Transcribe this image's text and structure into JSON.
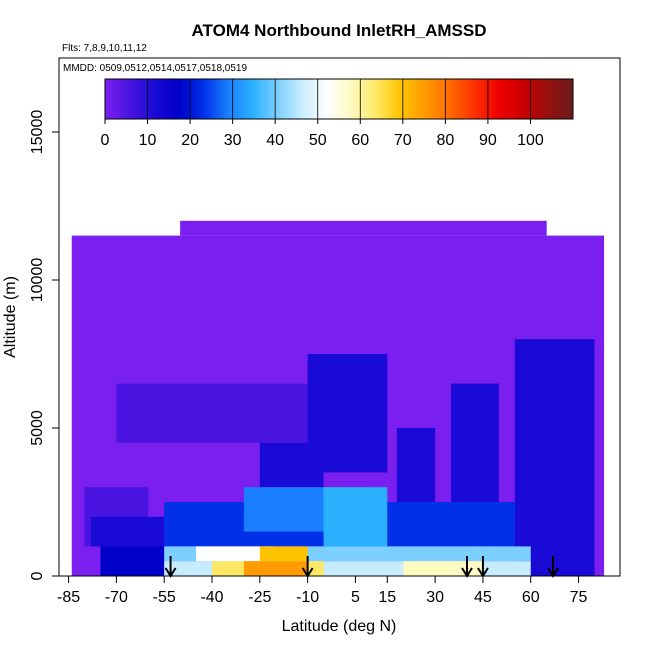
{
  "chart_data": {
    "type": "heatmap",
    "title": "ATOM4 Northbound InletRH_AMSSD",
    "flights_label": "Flts: 7,8,9,10,11,12",
    "mmdd_label": "MMDD: 0509,0512,0514,0517,0518,0519",
    "xlabel": "Latitude (deg N)",
    "ylabel": "Altitude (m)",
    "xlim": [
      -88,
      88
    ],
    "ylim": [
      0,
      17500
    ],
    "x_ticks": [
      -85,
      -70,
      -55,
      -40,
      -25,
      -10,
      5,
      15,
      30,
      45,
      60,
      75
    ],
    "y_ticks": [
      0,
      5000,
      10000,
      15000
    ],
    "colorbar": {
      "range": [
        0,
        110
      ],
      "ticks": [
        0,
        10,
        20,
        30,
        40,
        50,
        60,
        70,
        80,
        90,
        100
      ],
      "colors": [
        "#7a1ff0",
        "#4a14e0",
        "#1a0ad6",
        "#0000c8",
        "#0030e8",
        "#1a7fff",
        "#2ab0ff",
        "#7cd0ff",
        "#c8ecff",
        "#ffffff",
        "#fffac0",
        "#ffe866",
        "#ffc400",
        "#ff9a00",
        "#ff6a00",
        "#ff3000",
        "#ee0000",
        "#c80000",
        "#961010",
        "#6a1a1a"
      ]
    },
    "profile_arrows_lat": [
      -53,
      -10,
      40,
      45,
      67
    ],
    "cells": [
      {
        "lat_range": [
          -84,
          83
        ],
        "alt_range": [
          0,
          11500
        ],
        "value": 2
      },
      {
        "lat_range": [
          -50,
          65
        ],
        "alt_range": [
          11500,
          12000
        ],
        "value": 2
      },
      {
        "lat_range": [
          -70,
          0
        ],
        "alt_range": [
          4500,
          6500
        ],
        "value": 8
      },
      {
        "lat_range": [
          -25,
          -5
        ],
        "alt_range": [
          3000,
          4500
        ],
        "value": 12
      },
      {
        "lat_range": [
          -10,
          15
        ],
        "alt_range": [
          3500,
          7500
        ],
        "value": 14
      },
      {
        "lat_range": [
          18,
          30
        ],
        "alt_range": [
          1500,
          5000
        ],
        "value": 14
      },
      {
        "lat_range": [
          35,
          50
        ],
        "alt_range": [
          2000,
          6500
        ],
        "value": 14
      },
      {
        "lat_range": [
          55,
          80
        ],
        "alt_range": [
          0,
          8000
        ],
        "value": 15
      },
      {
        "lat_range": [
          -80,
          -60
        ],
        "alt_range": [
          1000,
          3000
        ],
        "value": 8
      },
      {
        "lat_range": [
          -78,
          -55
        ],
        "alt_range": [
          1000,
          2000
        ],
        "value": 14
      },
      {
        "lat_range": [
          -55,
          55
        ],
        "alt_range": [
          1000,
          2500
        ],
        "value": 24
      },
      {
        "lat_range": [
          -30,
          10
        ],
        "alt_range": [
          1500,
          3000
        ],
        "value": 30
      },
      {
        "lat_range": [
          -5,
          15
        ],
        "alt_range": [
          1000,
          3000
        ],
        "value": 38
      },
      {
        "lat_range": [
          -75,
          -55
        ],
        "alt_range": [
          0,
          1000
        ],
        "value": 20
      },
      {
        "lat_range": [
          -55,
          60
        ],
        "alt_range": [
          500,
          1000
        ],
        "value": 40
      },
      {
        "lat_range": [
          -45,
          -20
        ],
        "alt_range": [
          500,
          1000
        ],
        "value": 50
      },
      {
        "lat_range": [
          -25,
          -10
        ],
        "alt_range": [
          500,
          1000
        ],
        "value": 70
      },
      {
        "lat_range": [
          -55,
          60
        ],
        "alt_range": [
          0,
          500
        ],
        "value": 45
      },
      {
        "lat_range": [
          -40,
          -5
        ],
        "alt_range": [
          0,
          500
        ],
        "value": 62
      },
      {
        "lat_range": [
          -30,
          -10
        ],
        "alt_range": [
          0,
          500
        ],
        "value": 75
      },
      {
        "lat_range": [
          20,
          45
        ],
        "alt_range": [
          0,
          500
        ],
        "value": 55
      }
    ]
  }
}
